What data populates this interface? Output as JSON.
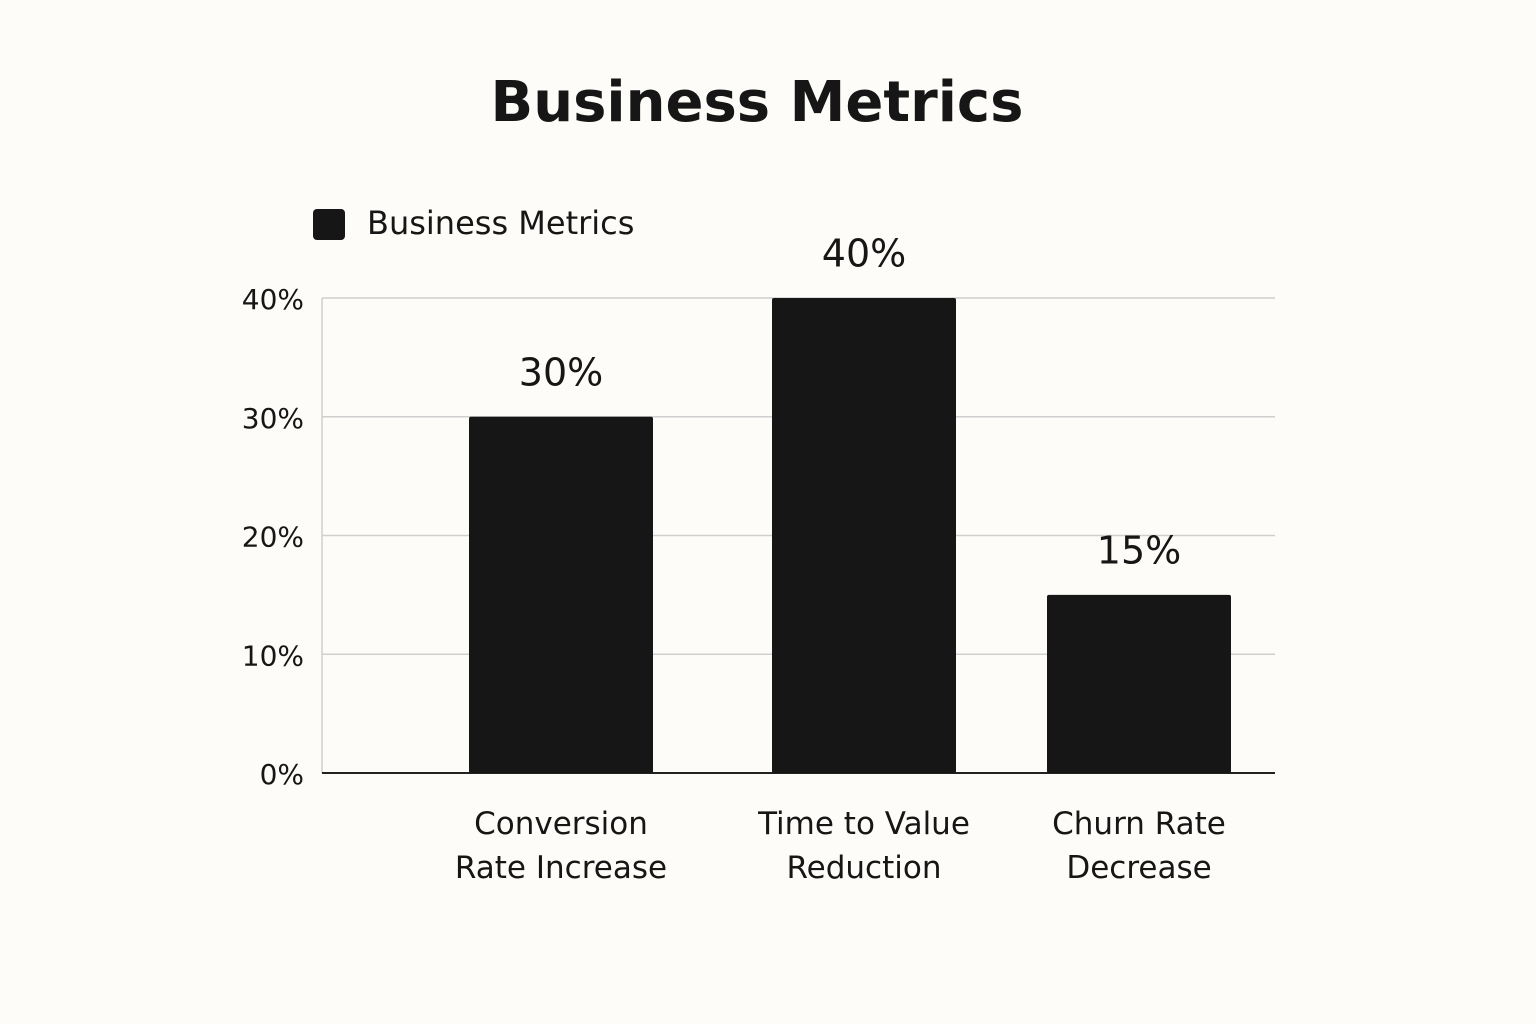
{
  "chart_data": {
    "type": "bar",
    "title": "Business Metrics",
    "legend": "Business Metrics",
    "legend_position": "top-left",
    "categories": [
      "Conversion Rate Increase",
      "Time to Value Reduction",
      "Churn Rate Decrease"
    ],
    "values": [
      30,
      40,
      15
    ],
    "value_labels": [
      "30%",
      "40%",
      "15%"
    ],
    "color": "#161616",
    "ylim": [
      0,
      40
    ],
    "yticks": [
      {
        "value": 0,
        "label": "0%"
      },
      {
        "value": 10,
        "label": "10%"
      },
      {
        "value": 20,
        "label": "20%"
      },
      {
        "value": 30,
        "label": "30%"
      },
      {
        "value": 40,
        "label": "40%"
      }
    ],
    "grid": true
  }
}
